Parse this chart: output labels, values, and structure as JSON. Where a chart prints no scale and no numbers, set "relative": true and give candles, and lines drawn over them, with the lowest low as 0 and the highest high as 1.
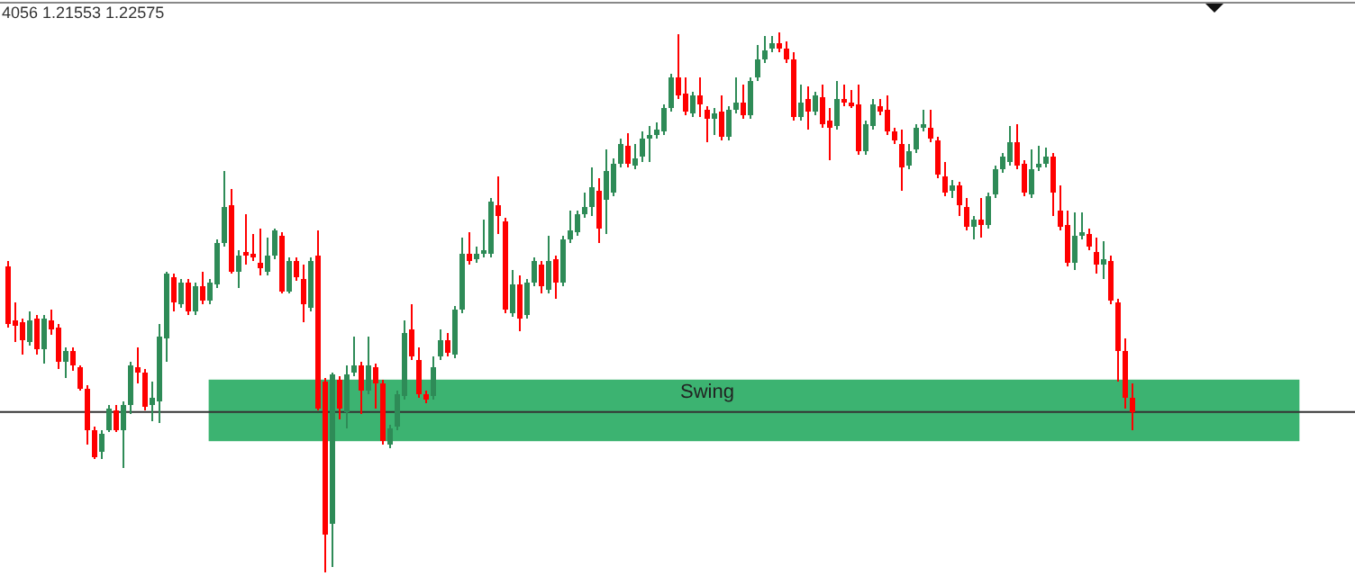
{
  "chart_data": {
    "type": "candlestick",
    "relative": true,
    "colors": [
      "#ff0000",
      "#ff0000",
      "#ff0000",
      "#2e8b57",
      "#ff0000",
      "#2e8b57",
      "#ff0000",
      "#ff0000",
      "#2e8b57",
      "#ff0000",
      "#ff0000",
      "#ff0000",
      "#ff0000",
      "#2e8b57",
      "#2e8b57",
      "#ff0000",
      "#2e8b57",
      "#2e8b57",
      "#ff0000",
      "#ff0000",
      "#2e8b57",
      "#2e8b57",
      "#2e8b57",
      "#ff0000",
      "#2e8b57",
      "#ff0000",
      "#2e8b57",
      "#ff0000",
      "#2e8b57",
      "#2e8b57",
      "#2e8b57",
      "#ff0000",
      "#2e8b57",
      "#ff0000",
      "#ff0000",
      "#ff0000",
      "#2e8b57",
      "#2e8b57",
      "#ff0000",
      "#2e8b57",
      "#ff0000",
      "#ff0000",
      "#2e8b57",
      "#ff0000",
      "#ff0000",
      "#2e8b57",
      "#ff0000",
      "#2e8b57",
      "#2e8b57",
      "#ff0000",
      "#2e8b57",
      "#ff0000",
      "#ff0000",
      "#2e8b57",
      "#2e8b57",
      "#2e8b57",
      "#ff0000",
      "#ff0000",
      "#ff0000",
      "#2e8b57",
      "#2e8b57",
      "#ff0000",
      "#2e8b57",
      "#2e8b57",
      "#ff0000",
      "#2e8b57",
      "#2e8b57",
      "#2e8b57",
      "#ff0000",
      "#ff0000",
      "#2e8b57",
      "#ff0000",
      "#2e8b57",
      "#2e8b57",
      "#ff0000",
      "#2e8b57",
      "#ff0000",
      "#2e8b57",
      "#2e8b57",
      "#2e8b57",
      "#2e8b57",
      "#2e8b57",
      "#ff0000",
      "#2e8b57",
      "#2e8b57",
      "#2e8b57",
      "#ff0000",
      "#2e8b57",
      "#2e8b57",
      "#2e8b57",
      "#2e8b57",
      "#2e8b57",
      "#2e8b57",
      "#ff0000",
      "#ff0000",
      "#2e8b57",
      "#ff0000",
      "#ff0000",
      "#2e8b57",
      "#ff0000",
      "#2e8b57",
      "#2e8b57",
      "#ff0000",
      "#2e8b57",
      "#2e8b57",
      "#2e8b57",
      "#2e8b57",
      "#ff0000",
      "#ff0000",
      "#ff0000",
      "#2e8b57",
      "#ff0000",
      "#2e8b57",
      "#ff0000",
      "#ff0000",
      "#2e8b57",
      "#ff0000",
      "#ff0000",
      "#ff0000",
      "#2e8b57",
      "#2e8b57",
      "#ff0000",
      "#ff0000",
      "#ff0000",
      "#ff0000",
      "#2e8b57",
      "#2e8b57",
      "#2e8b57",
      "#ff0000",
      "#ff0000",
      "#ff0000",
      "#2e8b57",
      "#ff0000",
      "#ff0000",
      "#2e8b57",
      "#ff0000",
      "#2e8b57",
      "#2e8b57",
      "#2e8b57",
      "#2e8b57",
      "#ff0000",
      "#ff0000",
      "#2e8b57",
      "#2e8b57",
      "#2e8b57",
      "#ff0000",
      "#ff0000",
      "#ff0000",
      "#2e8b57",
      "#2e8b57",
      "#ff0000",
      "#ff0000",
      "#2e8b57",
      "#ff0000",
      "#ff0000",
      "#ff0000",
      "#ff0000"
    ],
    "annotations": [
      "4056 1.21553 1.22575"
    ],
    "bands": [
      {
        "axis": "y",
        "from": 0.243,
        "to": 0.357,
        "label": "Swing",
        "color": "#3cb371"
      }
    ],
    "ref_lines": [
      {
        "axis": "y",
        "value": 0.297,
        "color": "#333333"
      }
    ],
    "categories": [
      null,
      null,
      null,
      null,
      null,
      null,
      null,
      null,
      null,
      null,
      null,
      null,
      null,
      null,
      null,
      null,
      null,
      null,
      null,
      null,
      null,
      null,
      null,
      null,
      null,
      null,
      null,
      null,
      null,
      null,
      null,
      null,
      null,
      null,
      null,
      null,
      null,
      null,
      null,
      null,
      null,
      null,
      null,
      null,
      null,
      null,
      null,
      null,
      null,
      null,
      null,
      null,
      null,
      null,
      null,
      null,
      null,
      null,
      null,
      null,
      null,
      null,
      null,
      null,
      null,
      null,
      null,
      null,
      null,
      null,
      null,
      null,
      null,
      null,
      null,
      null,
      null,
      null,
      null,
      null,
      null,
      null,
      null,
      null,
      null,
      null,
      null,
      null,
      null,
      null,
      null,
      null,
      null,
      null,
      null,
      null,
      null,
      null,
      null,
      null,
      null,
      null,
      null,
      null,
      null,
      null,
      null,
      null,
      null,
      null,
      null,
      null,
      null,
      null,
      null,
      null,
      null,
      null,
      null,
      null,
      null,
      null,
      null,
      null,
      null,
      null,
      null,
      null,
      null,
      null,
      null,
      null,
      null,
      null,
      null,
      null,
      null,
      null,
      null,
      null,
      null,
      null,
      null,
      null,
      null,
      null,
      null,
      null,
      null,
      null,
      null,
      null,
      null,
      null,
      null,
      null,
      null
    ],
    "ohlc": [
      [
        0.567,
        0.577,
        0.453,
        0.46
      ],
      [
        0.467,
        0.5,
        0.427,
        0.457
      ],
      [
        0.463,
        0.47,
        0.403,
        0.43
      ],
      [
        0.427,
        0.483,
        0.42,
        0.467
      ],
      [
        0.47,
        0.477,
        0.403,
        0.413
      ],
      [
        0.413,
        0.477,
        0.387,
        0.47
      ],
      [
        0.467,
        0.487,
        0.44,
        0.45
      ],
      [
        0.453,
        0.46,
        0.377,
        0.39
      ],
      [
        0.39,
        0.417,
        0.36,
        0.41
      ],
      [
        0.41,
        0.417,
        0.373,
        0.383
      ],
      [
        0.38,
        0.383,
        0.337,
        0.34
      ],
      [
        0.34,
        0.347,
        0.237,
        0.263
      ],
      [
        0.263,
        0.27,
        0.21,
        0.213
      ],
      [
        0.223,
        0.263,
        0.21,
        0.257
      ],
      [
        0.263,
        0.31,
        0.26,
        0.303
      ],
      [
        0.3,
        0.31,
        0.26,
        0.263
      ],
      [
        0.263,
        0.317,
        0.193,
        0.31
      ],
      [
        0.31,
        0.39,
        0.293,
        0.383
      ],
      [
        0.38,
        0.417,
        0.35,
        0.37
      ],
      [
        0.37,
        0.377,
        0.3,
        0.307
      ],
      [
        0.31,
        0.353,
        0.28,
        0.323
      ],
      [
        0.317,
        0.46,
        0.277,
        0.437
      ],
      [
        0.433,
        0.557,
        0.39,
        0.553
      ],
      [
        0.547,
        0.553,
        0.483,
        0.5
      ],
      [
        0.497,
        0.543,
        0.49,
        0.537
      ],
      [
        0.537,
        0.543,
        0.477,
        0.483
      ],
      [
        0.483,
        0.537,
        0.477,
        0.53
      ],
      [
        0.53,
        0.557,
        0.497,
        0.503
      ],
      [
        0.503,
        0.543,
        0.497,
        0.537
      ],
      [
        0.533,
        0.617,
        0.527,
        0.61
      ],
      [
        0.61,
        0.743,
        0.603,
        0.677
      ],
      [
        0.68,
        0.71,
        0.553,
        0.557
      ],
      [
        0.557,
        0.597,
        0.527,
        0.587
      ],
      [
        0.593,
        0.663,
        0.57,
        0.587
      ],
      [
        0.59,
        0.627,
        0.577,
        0.583
      ],
      [
        0.573,
        0.637,
        0.55,
        0.563
      ],
      [
        0.557,
        0.62,
        0.55,
        0.587
      ],
      [
        0.587,
        0.637,
        0.58,
        0.633
      ],
      [
        0.623,
        0.63,
        0.517,
        0.52
      ],
      [
        0.52,
        0.583,
        0.517,
        0.577
      ],
      [
        0.577,
        0.583,
        0.54,
        0.547
      ],
      [
        0.543,
        0.57,
        0.463,
        0.497
      ],
      [
        0.49,
        0.583,
        0.483,
        0.577
      ],
      [
        0.587,
        0.633,
        0.3,
        0.303
      ],
      [
        0.353,
        0.36,
        0,
        0.07
      ],
      [
        0.09,
        0.37,
        0.01,
        0.367
      ],
      [
        0.357,
        0.363,
        0.283,
        0.303
      ],
      [
        0.297,
        0.383,
        0.267,
        0.367
      ],
      [
        0.37,
        0.437,
        0.363,
        0.383
      ],
      [
        0.383,
        0.39,
        0.293,
        0.337
      ],
      [
        0.337,
        0.437,
        0.33,
        0.383
      ],
      [
        0.38,
        0.387,
        0.303,
        0.35
      ],
      [
        0.35,
        0.357,
        0.237,
        0.243
      ],
      [
        0.237,
        0.273,
        0.23,
        0.267
      ],
      [
        0.27,
        0.337,
        0.263,
        0.33
      ],
      [
        0.327,
        0.467,
        0.32,
        0.443
      ],
      [
        0.45,
        0.497,
        0.393,
        0.4
      ],
      [
        0.393,
        0.417,
        0.323,
        0.33
      ],
      [
        0.33,
        0.337,
        0.313,
        0.32
      ],
      [
        0.327,
        0.4,
        0.32,
        0.38
      ],
      [
        0.4,
        0.45,
        0.393,
        0.43
      ],
      [
        0.43,
        0.443,
        0.4,
        0.407
      ],
      [
        0.403,
        0.493,
        0.397,
        0.487
      ],
      [
        0.487,
        0.62,
        0.48,
        0.59
      ],
      [
        0.59,
        0.63,
        0.57,
        0.577
      ],
      [
        0.58,
        0.603,
        0.573,
        0.59
      ],
      [
        0.59,
        0.653,
        0.583,
        0.597
      ],
      [
        0.59,
        0.693,
        0.583,
        0.687
      ],
      [
        0.68,
        0.733,
        0.627,
        0.66
      ],
      [
        0.65,
        0.657,
        0.48,
        0.487
      ],
      [
        0.48,
        0.56,
        0.473,
        0.533
      ],
      [
        0.533,
        0.55,
        0.447,
        0.47
      ],
      [
        0.477,
        0.543,
        0.47,
        0.537
      ],
      [
        0.537,
        0.583,
        0.53,
        0.577
      ],
      [
        0.57,
        0.577,
        0.517,
        0.53
      ],
      [
        0.523,
        0.623,
        0.517,
        0.577
      ],
      [
        0.58,
        0.587,
        0.507,
        0.537
      ],
      [
        0.537,
        0.623,
        0.53,
        0.617
      ],
      [
        0.617,
        0.67,
        0.61,
        0.633
      ],
      [
        0.63,
        0.67,
        0.623,
        0.663
      ],
      [
        0.663,
        0.703,
        0.657,
        0.677
      ],
      [
        0.677,
        0.75,
        0.66,
        0.713
      ],
      [
        0.707,
        0.73,
        0.61,
        0.637
      ],
      [
        0.69,
        0.783,
        0.627,
        0.743
      ],
      [
        0.703,
        0.767,
        0.697,
        0.757
      ],
      [
        0.757,
        0.803,
        0.75,
        0.793
      ],
      [
        0.79,
        0.813,
        0.75,
        0.757
      ],
      [
        0.753,
        0.793,
        0.747,
        0.767
      ],
      [
        0.77,
        0.817,
        0.76,
        0.803
      ],
      [
        0.803,
        0.827,
        0.76,
        0.81
      ],
      [
        0.81,
        0.833,
        0.803,
        0.82
      ],
      [
        0.817,
        0.867,
        0.81,
        0.86
      ],
      [
        0.86,
        0.923,
        0.853,
        0.917
      ],
      [
        0.917,
        0.997,
        0.877,
        0.883
      ],
      [
        0.887,
        0.917,
        0.847,
        0.853
      ],
      [
        0.85,
        0.89,
        0.843,
        0.883
      ],
      [
        0.883,
        0.917,
        0.843,
        0.867
      ],
      [
        0.857,
        0.863,
        0.797,
        0.84
      ],
      [
        0.84,
        0.86,
        0.81,
        0.85
      ],
      [
        0.853,
        0.883,
        0.8,
        0.807
      ],
      [
        0.807,
        0.863,
        0.8,
        0.857
      ],
      [
        0.857,
        0.917,
        0.85,
        0.87
      ],
      [
        0.87,
        0.903,
        0.84,
        0.847
      ],
      [
        0.847,
        0.917,
        0.84,
        0.91
      ],
      [
        0.917,
        0.977,
        0.91,
        0.95
      ],
      [
        0.95,
        0.993,
        0.943,
        0.967
      ],
      [
        0.97,
        0.993,
        0.963,
        0.98
      ],
      [
        0.98,
        1,
        0.963,
        0.97
      ],
      [
        0.97,
        0.983,
        0.943,
        0.95
      ],
      [
        0.95,
        0.963,
        0.837,
        0.843
      ],
      [
        0.843,
        0.903,
        0.837,
        0.87
      ],
      [
        0.877,
        0.9,
        0.82,
        0.853
      ],
      [
        0.853,
        0.89,
        0.847,
        0.883
      ],
      [
        0.88,
        0.903,
        0.823,
        0.83
      ],
      [
        0.837,
        0.86,
        0.763,
        0.823
      ],
      [
        0.827,
        0.91,
        0.82,
        0.877
      ],
      [
        0.877,
        0.903,
        0.863,
        0.87
      ],
      [
        0.87,
        0.893,
        0.86,
        0.867
      ],
      [
        0.867,
        0.903,
        0.773,
        0.78
      ],
      [
        0.78,
        0.837,
        0.773,
        0.83
      ],
      [
        0.827,
        0.877,
        0.82,
        0.867
      ],
      [
        0.863,
        0.877,
        0.847,
        0.853
      ],
      [
        0.857,
        0.883,
        0.81,
        0.817
      ],
      [
        0.817,
        0.823,
        0.793,
        0.8
      ],
      [
        0.793,
        0.82,
        0.707,
        0.75
      ],
      [
        0.753,
        0.793,
        0.747,
        0.78
      ],
      [
        0.783,
        0.83,
        0.777,
        0.823
      ],
      [
        0.823,
        0.857,
        0.817,
        0.83
      ],
      [
        0.823,
        0.857,
        0.797,
        0.803
      ],
      [
        0.8,
        0.807,
        0.73,
        0.737
      ],
      [
        0.733,
        0.76,
        0.697,
        0.703
      ],
      [
        0.707,
        0.727,
        0.693,
        0.717
      ],
      [
        0.717,
        0.723,
        0.66,
        0.68
      ],
      [
        0.677,
        0.693,
        0.633,
        0.64
      ],
      [
        0.64,
        0.66,
        0.617,
        0.653
      ],
      [
        0.653,
        0.693,
        0.62,
        0.643
      ],
      [
        0.643,
        0.703,
        0.637,
        0.697
      ],
      [
        0.7,
        0.753,
        0.693,
        0.747
      ],
      [
        0.747,
        0.777,
        0.74,
        0.77
      ],
      [
        0.76,
        0.827,
        0.753,
        0.797
      ],
      [
        0.797,
        0.83,
        0.747,
        0.753
      ],
      [
        0.757,
        0.763,
        0.697,
        0.703
      ],
      [
        0.7,
        0.783,
        0.693,
        0.747
      ],
      [
        0.75,
        0.79,
        0.743,
        0.757
      ],
      [
        0.757,
        0.787,
        0.75,
        0.77
      ],
      [
        0.77,
        0.777,
        0.66,
        0.703
      ],
      [
        0.67,
        0.717,
        0.633,
        0.64
      ],
      [
        0.643,
        0.67,
        0.567,
        0.573
      ],
      [
        0.573,
        0.667,
        0.56,
        0.623
      ],
      [
        0.623,
        0.667,
        0.617,
        0.63
      ],
      [
        0.627,
        0.637,
        0.597,
        0.603
      ],
      [
        0.593,
        0.62,
        0.553,
        0.57
      ],
      [
        0.57,
        0.613,
        0.543,
        0.58
      ],
      [
        0.577,
        0.587,
        0.497,
        0.503
      ],
      [
        0.5,
        0.507,
        0.353,
        0.41
      ],
      [
        0.41,
        0.433,
        0.303,
        0.323
      ],
      [
        0.323,
        0.35,
        0.263,
        0.297
      ]
    ]
  }
}
